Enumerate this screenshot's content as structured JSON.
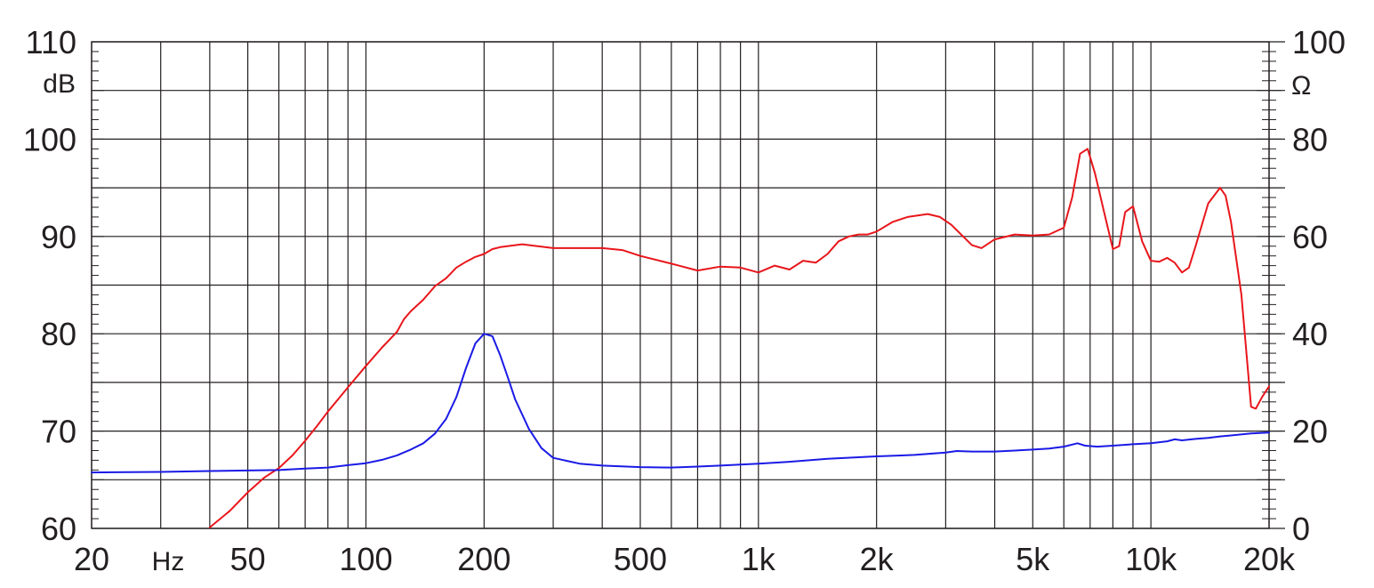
{
  "chart_data": {
    "type": "line",
    "x_scale": "log",
    "xlim": [
      20,
      20000
    ],
    "x_ticks": [
      {
        "value": 20,
        "label": "20"
      },
      {
        "value": 50,
        "label": "50"
      },
      {
        "value": 100,
        "label": "100"
      },
      {
        "value": 200,
        "label": "200"
      },
      {
        "value": 500,
        "label": "500"
      },
      {
        "value": 1000,
        "label": "1k"
      },
      {
        "value": 2000,
        "label": "2k"
      },
      {
        "value": 5000,
        "label": "5k"
      },
      {
        "value": 10000,
        "label": "10k"
      },
      {
        "value": 20000,
        "label": "20k"
      }
    ],
    "x_unit": "Hz",
    "left_axis": {
      "unit": "dB",
      "ylim": [
        60,
        110
      ],
      "ticks": [
        60,
        70,
        80,
        90,
        100,
        110
      ]
    },
    "right_axis": {
      "unit": "Ω",
      "ylim": [
        0,
        100
      ],
      "ticks": [
        0,
        20,
        40,
        60,
        80,
        100
      ]
    },
    "grid": true,
    "colors": {
      "grid": "#231f20",
      "text": "#231f20",
      "spl": "#e8161b",
      "impedance": "#1a1ae6"
    },
    "series": [
      {
        "key": "spl",
        "axis": "left",
        "x": [
          40,
          45,
          50,
          55,
          60,
          65,
          70,
          75,
          80,
          90,
          100,
          110,
          120,
          125,
          130,
          140,
          150,
          160,
          170,
          180,
          190,
          200,
          210,
          220,
          250,
          300,
          400,
          450,
          500,
          600,
          700,
          800,
          900,
          1000,
          1100,
          1200,
          1300,
          1400,
          1500,
          1600,
          1700,
          1800,
          1900,
          2000,
          2200,
          2400,
          2700,
          2900,
          3100,
          3500,
          3700,
          4000,
          4500,
          5000,
          5500,
          6000,
          6300,
          6600,
          6900,
          7200,
          7600,
          8000,
          8300,
          8600,
          9000,
          9500,
          10000,
          10500,
          11000,
          11500,
          12000,
          12500,
          13000,
          14000,
          15000,
          15500,
          16000,
          17000,
          18000,
          18500,
          19200,
          20000
        ],
        "y": [
          60.1,
          61.8,
          63.7,
          65.2,
          66.2,
          67.5,
          69.0,
          70.5,
          72.0,
          74.5,
          76.7,
          78.6,
          80.2,
          81.5,
          82.3,
          83.5,
          84.9,
          85.7,
          86.8,
          87.4,
          87.9,
          88.2,
          88.7,
          88.9,
          89.2,
          88.8,
          88.8,
          88.6,
          88.0,
          87.2,
          86.5,
          86.9,
          86.8,
          86.3,
          87.0,
          86.6,
          87.5,
          87.3,
          88.2,
          89.5,
          90.0,
          90.2,
          90.2,
          90.5,
          91.5,
          92.0,
          92.3,
          92.0,
          91.2,
          89.1,
          88.8,
          89.7,
          90.2,
          90.1,
          90.2,
          90.9,
          94.0,
          98.5,
          99.0,
          96.5,
          92.5,
          88.7,
          89.0,
          92.5,
          93.1,
          89.5,
          87.5,
          87.4,
          87.8,
          87.3,
          86.3,
          86.8,
          89.0,
          93.4,
          95.0,
          94.2,
          91.5,
          84.0,
          72.5,
          72.3,
          73.5,
          74.6
        ]
      },
      {
        "key": "impedance",
        "axis": "right",
        "x": [
          20,
          30,
          40,
          50,
          60,
          70,
          80,
          90,
          100,
          110,
          120,
          130,
          140,
          150,
          160,
          170,
          180,
          190,
          200,
          210,
          220,
          230,
          240,
          260,
          280,
          300,
          350,
          400,
          500,
          600,
          700,
          800,
          900,
          1000,
          1200,
          1500,
          2000,
          2500,
          3000,
          3200,
          3500,
          4000,
          4500,
          5000,
          5500,
          6000,
          6500,
          6800,
          7300,
          8000,
          9000,
          10000,
          11000,
          11500,
          12000,
          13000,
          14000,
          15000,
          16000,
          18000,
          20000
        ],
        "y": [
          11.5,
          11.6,
          11.8,
          11.9,
          12.0,
          12.3,
          12.5,
          13.0,
          13.4,
          14.1,
          15.0,
          16.2,
          17.5,
          19.5,
          22.5,
          27.0,
          33.0,
          38.0,
          40.0,
          39.5,
          35.5,
          31.0,
          26.5,
          20.5,
          16.5,
          14.5,
          13.3,
          12.9,
          12.6,
          12.5,
          12.7,
          12.9,
          13.1,
          13.3,
          13.7,
          14.3,
          14.8,
          15.1,
          15.6,
          15.9,
          15.8,
          15.8,
          16.0,
          16.2,
          16.4,
          16.8,
          17.5,
          17.0,
          16.8,
          17.0,
          17.3,
          17.5,
          17.9,
          18.3,
          18.1,
          18.4,
          18.6,
          18.9,
          19.1,
          19.5,
          19.7
        ]
      }
    ]
  }
}
